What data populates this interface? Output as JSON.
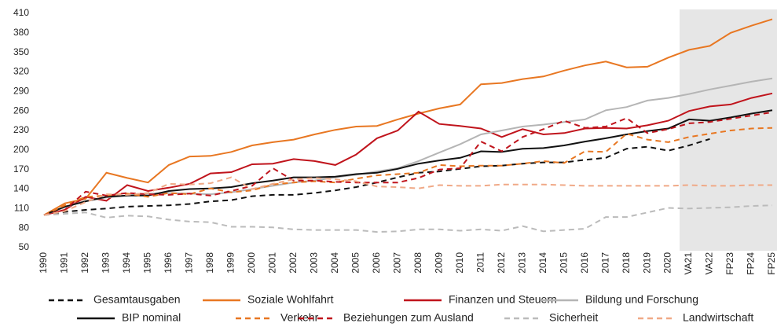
{
  "chart_data": {
    "type": "line",
    "categories": [
      "1990",
      "1991",
      "1992",
      "1993",
      "1994",
      "1995",
      "1996",
      "1997",
      "1998",
      "1999",
      "2000",
      "2001",
      "2002",
      "2003",
      "2004",
      "2005",
      "2006",
      "2007",
      "2008",
      "2009",
      "2010",
      "2011",
      "2012",
      "2013",
      "2014",
      "2015",
      "2016",
      "2017",
      "2018",
      "2019",
      "2020",
      "VA21",
      "VA22",
      "FP23",
      "FP24",
      "FP25"
    ],
    "ylim": [
      50,
      410
    ],
    "yticks": [
      50,
      80,
      110,
      140,
      170,
      200,
      230,
      260,
      290,
      320,
      350,
      380,
      410
    ],
    "series": [
      {
        "name": "Gesamtausgaben",
        "color": "#111111",
        "dashed": true,
        "values": [
          100,
          105,
          108,
          110,
          113,
          114,
          115,
          117,
          121,
          123,
          129,
          131,
          131,
          134,
          138,
          143,
          150,
          158,
          165,
          167,
          171,
          175,
          176,
          179,
          181,
          181,
          185,
          188,
          202,
          205,
          199,
          207,
          217,
          null,
          null,
          null
        ]
      },
      {
        "name": "Soziale Wohlfahrt",
        "color": "#e87722",
        "dashed": false,
        "values": [
          100,
          118,
          125,
          165,
          157,
          150,
          177,
          190,
          191,
          197,
          207,
          212,
          216,
          224,
          231,
          236,
          237,
          247,
          256,
          264,
          270,
          301,
          303,
          309,
          313,
          322,
          330,
          336,
          327,
          328,
          342,
          354,
          360,
          380,
          391,
          401
        ]
      },
      {
        "name": "Finanzen und Steuern",
        "color": "#c0141c",
        "dashed": false,
        "values": [
          100,
          108,
          128,
          122,
          146,
          137,
          142,
          148,
          164,
          166,
          178,
          179,
          186,
          183,
          177,
          193,
          218,
          230,
          259,
          240,
          237,
          233,
          220,
          232,
          224,
          226,
          233,
          234,
          233,
          238,
          245,
          260,
          267,
          270,
          280,
          287
        ]
      },
      {
        "name": "Bildung und Forschung",
        "color": "#b5b5b5",
        "dashed": false,
        "values": [
          100,
          112,
          122,
          127,
          130,
          133,
          134,
          133,
          132,
          135,
          140,
          145,
          150,
          153,
          158,
          162,
          167,
          172,
          183,
          196,
          209,
          224,
          230,
          236,
          239,
          243,
          247,
          261,
          266,
          276,
          280,
          286,
          293,
          299,
          305,
          310
        ]
      },
      {
        "name": "BIP nominal",
        "color": "#111111",
        "dashed": false,
        "values": [
          100,
          113,
          121,
          128,
          130,
          130,
          137,
          140,
          141,
          143,
          149,
          153,
          158,
          158,
          159,
          163,
          165,
          171,
          179,
          184,
          188,
          198,
          197,
          202,
          203,
          207,
          213,
          218,
          224,
          229,
          233,
          247,
          245,
          250,
          256,
          261
        ]
      },
      {
        "name": "Verkehr",
        "color": "#e87722",
        "dashed": true,
        "values": [
          100,
          115,
          128,
          130,
          133,
          128,
          134,
          132,
          141,
          135,
          138,
          147,
          150,
          152,
          150,
          156,
          161,
          163,
          165,
          177,
          175,
          176,
          176,
          179,
          183,
          180,
          198,
          197,
          225,
          216,
          212,
          220,
          225,
          230,
          233,
          234
        ]
      },
      {
        "name": "Beziehungen zum Ausland",
        "color": "#c0141c",
        "dashed": true,
        "values": [
          100,
          108,
          136,
          130,
          134,
          132,
          131,
          133,
          130,
          137,
          145,
          172,
          153,
          153,
          151,
          150,
          150,
          150,
          157,
          170,
          172,
          213,
          198,
          220,
          232,
          245,
          234,
          236,
          249,
          226,
          232,
          241,
          243,
          248,
          253,
          258
        ]
      },
      {
        "name": "Sicherheit",
        "color": "#bbbbbb",
        "dashed": true,
        "values": [
          100,
          102,
          104,
          96,
          99,
          98,
          93,
          90,
          89,
          82,
          82,
          81,
          78,
          77,
          77,
          77,
          74,
          75,
          78,
          78,
          76,
          78,
          76,
          83,
          75,
          77,
          79,
          97,
          97,
          104,
          111,
          110,
          111,
          112,
          114,
          115
        ]
      },
      {
        "name": "Landwirtschaft",
        "color": "#f0a987",
        "dashed": true,
        "values": [
          100,
          106,
          120,
          132,
          131,
          134,
          148,
          147,
          149,
          158,
          140,
          148,
          155,
          157,
          155,
          152,
          144,
          143,
          141,
          146,
          145,
          145,
          147,
          147,
          147,
          146,
          145,
          145,
          145,
          145,
          145,
          146,
          145,
          145,
          146,
          146
        ]
      }
    ]
  }
}
